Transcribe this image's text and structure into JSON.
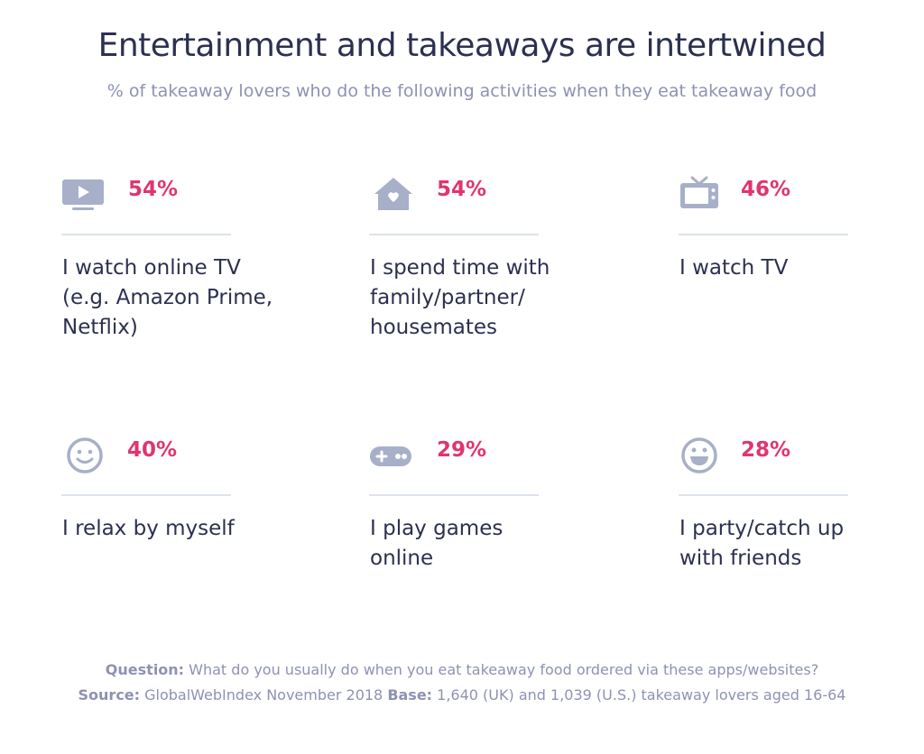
{
  "title": "Entertainment and takeaways are intertwined",
  "subtitle": "% of takeaway lovers who do the following activities when they eat takeaway food",
  "colors": {
    "accent": "#e0356f",
    "icon": "#a7b0c8",
    "text": "#2c3050",
    "muted": "#8e92b2",
    "rule": "#dde3ee"
  },
  "chart_data": {
    "type": "table",
    "unit": "%",
    "categories": [
      "I watch online TV (e.g. Amazon Prime, Netflix)",
      "I spend time with family/partner/ housemates",
      "I watch TV",
      "I relax by myself",
      "I play games online",
      "I party/catch up with friends"
    ],
    "values": [
      54,
      54,
      46,
      40,
      29,
      28
    ]
  },
  "items": [
    {
      "pct": "54%",
      "icon": "online-tv-play-icon",
      "label_lines": [
        "I watch online TV",
        "(e.g. Amazon Prime,",
        "Netflix)"
      ]
    },
    {
      "pct": "54%",
      "icon": "house-heart-icon",
      "label_lines": [
        "I spend time with",
        "family/partner/",
        "housemates"
      ]
    },
    {
      "pct": "46%",
      "icon": "tv-set-icon",
      "label_lines": [
        "I watch TV"
      ]
    },
    {
      "pct": "40%",
      "icon": "smiley-face-icon",
      "label_lines": [
        "I relax by myself"
      ]
    },
    {
      "pct": "29%",
      "icon": "gamepad-icon",
      "label_lines": [
        "I play games",
        "online"
      ]
    },
    {
      "pct": "28%",
      "icon": "grinning-face-icon",
      "label_lines": [
        "I party/catch up",
        "with friends"
      ]
    }
  ],
  "footer": {
    "question_label": "Question:",
    "question_text": " What do you usually do when you eat takeaway food ordered via these apps/websites?",
    "source_label": "Source:",
    "source_text": " GlobalWebIndex November 2018 ",
    "base_label": "Base:",
    "base_text": " 1,640 (UK) and 1,039 (U.S.) takeaway lovers aged 16-64"
  }
}
